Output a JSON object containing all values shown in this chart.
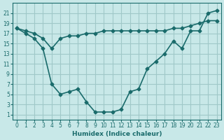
{
  "xlabel": "Humidex (Indice chaleur)",
  "bg_color": "#c8e8e8",
  "grid_color": "#a0c8c8",
  "line_color": "#1a6b6b",
  "x_line1": [
    0,
    1,
    2,
    3,
    4,
    5,
    6,
    7,
    8,
    9,
    10,
    11,
    12,
    13,
    14,
    15,
    16,
    17,
    18,
    19,
    20,
    21,
    22,
    23
  ],
  "y_line1": [
    18,
    17.5,
    17,
    16,
    14,
    16,
    16.5,
    16.5,
    17,
    17,
    17.5,
    17.5,
    17.5,
    17.5,
    17.5,
    17.5,
    17.5,
    17.5,
    18,
    18,
    18.5,
    19,
    19.5,
    19.5
  ],
  "x_line2": [
    0,
    1,
    2,
    3,
    4,
    5,
    6,
    7,
    8,
    9,
    10,
    11,
    12,
    13,
    14,
    15,
    16,
    17,
    18,
    19,
    20,
    21,
    22,
    23
  ],
  "y_line2": [
    18,
    17,
    16,
    14,
    7,
    5,
    5.5,
    6,
    3.5,
    1.5,
    1.5,
    1.5,
    2,
    5.5,
    6,
    10,
    11.5,
    13,
    15.5,
    14,
    17.5,
    17.5,
    21,
    21.5
  ],
  "xlim": [
    -0.5,
    23.5
  ],
  "ylim": [
    0,
    23
  ],
  "yticks": [
    1,
    3,
    5,
    7,
    9,
    11,
    13,
    15,
    17,
    19,
    21
  ],
  "xticks": [
    0,
    1,
    2,
    3,
    4,
    5,
    6,
    7,
    8,
    9,
    10,
    11,
    12,
    13,
    14,
    15,
    16,
    17,
    18,
    19,
    20,
    21,
    22,
    23
  ],
  "marker": "D",
  "marker_size": 2.5,
  "linewidth": 1.2
}
